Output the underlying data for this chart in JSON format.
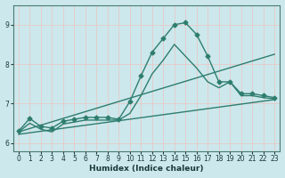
{
  "xlabel": "Humidex (Indice chaleur)",
  "bg_color": "#cce8ec",
  "grid_color": "#e8c8c8",
  "line_color": "#2e7d6e",
  "xlim": [
    -0.5,
    23.5
  ],
  "ylim": [
    5.8,
    9.5
  ],
  "xticks": [
    0,
    1,
    2,
    3,
    4,
    5,
    6,
    7,
    8,
    9,
    10,
    11,
    12,
    13,
    14,
    15,
    16,
    17,
    18,
    19,
    20,
    21,
    22,
    23
  ],
  "yticks": [
    6,
    7,
    8,
    9
  ],
  "lines": [
    {
      "x": [
        0,
        1,
        2,
        3,
        4,
        5,
        6,
        7,
        8,
        9,
        10,
        11,
        12,
        13,
        14,
        15,
        16,
        17,
        18,
        19,
        20,
        21,
        22,
        23
      ],
      "y": [
        6.3,
        6.62,
        6.42,
        6.38,
        6.55,
        6.6,
        6.65,
        6.65,
        6.65,
        6.6,
        7.05,
        7.7,
        8.3,
        8.65,
        9.0,
        9.05,
        8.75,
        8.2,
        7.55,
        7.55,
        7.25,
        7.25,
        7.2,
        7.15
      ],
      "marker": "D",
      "markersize": 2.5,
      "linewidth": 1.0
    },
    {
      "x": [
        0,
        1,
        2,
        3,
        4,
        5,
        6,
        7,
        8,
        9,
        10,
        11,
        12,
        13,
        14,
        15,
        16,
        17,
        18,
        19,
        20,
        21,
        22,
        23
      ],
      "y": [
        6.28,
        6.5,
        6.35,
        6.28,
        6.48,
        6.53,
        6.58,
        6.58,
        6.58,
        6.58,
        6.75,
        7.2,
        7.75,
        8.1,
        8.5,
        8.2,
        7.9,
        7.55,
        7.4,
        7.55,
        7.2,
        7.2,
        7.15,
        7.12
      ],
      "marker": null,
      "linewidth": 1.0
    },
    {
      "x": [
        0,
        23
      ],
      "y": [
        6.28,
        8.25
      ],
      "marker": null,
      "linewidth": 1.0
    },
    {
      "x": [
        0,
        23
      ],
      "y": [
        6.22,
        7.1
      ],
      "marker": null,
      "linewidth": 1.0
    }
  ]
}
